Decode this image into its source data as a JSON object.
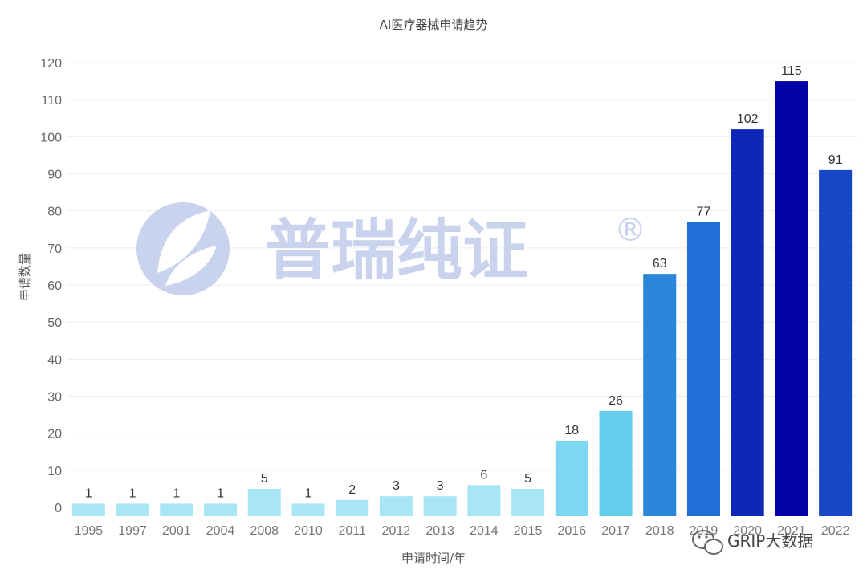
{
  "chart_data": {
    "type": "bar",
    "title": "AI医疗器械申请趋势",
    "xlabel": "申请时间/年",
    "ylabel": "申请数量",
    "categories": [
      "1995",
      "1997",
      "2001",
      "2004",
      "2008",
      "2010",
      "2011",
      "2012",
      "2013",
      "2014",
      "2015",
      "2016",
      "2017",
      "2018",
      "2019",
      "2020",
      "2021",
      "2022"
    ],
    "values": [
      1,
      1,
      1,
      1,
      5,
      1,
      2,
      3,
      3,
      6,
      5,
      18,
      26,
      63,
      77,
      102,
      115,
      91
    ],
    "data_labels": [
      "1",
      "1",
      "1",
      "1",
      "5",
      "1",
      "2",
      "3",
      "3",
      "6",
      "5",
      "18",
      "26",
      "63",
      "77",
      "102",
      "115",
      "91"
    ],
    "bar_colors": [
      "#a8e6f5",
      "#a8e6f5",
      "#a8e6f5",
      "#a8e6f5",
      "#a8e6f5",
      "#a8e6f5",
      "#a8e6f5",
      "#a8e6f5",
      "#a8e6f5",
      "#a8e6f5",
      "#a8e6f5",
      "#7fd6f0",
      "#63cdec",
      "#2a87da",
      "#1f6fd6",
      "#0e27b6",
      "#0202a6",
      "#1747c4"
    ],
    "yticks": [
      0,
      10,
      20,
      30,
      40,
      50,
      60,
      70,
      80,
      90,
      100,
      110,
      120
    ],
    "ylim": [
      0,
      120
    ],
    "grid": true,
    "legend": "none"
  },
  "watermark": {
    "text": "普瑞纯证",
    "registered_mark": "®",
    "color": "#c9d3ee"
  },
  "source_badge": {
    "text": "GRIP大数据",
    "icon": "wechat-icon"
  }
}
